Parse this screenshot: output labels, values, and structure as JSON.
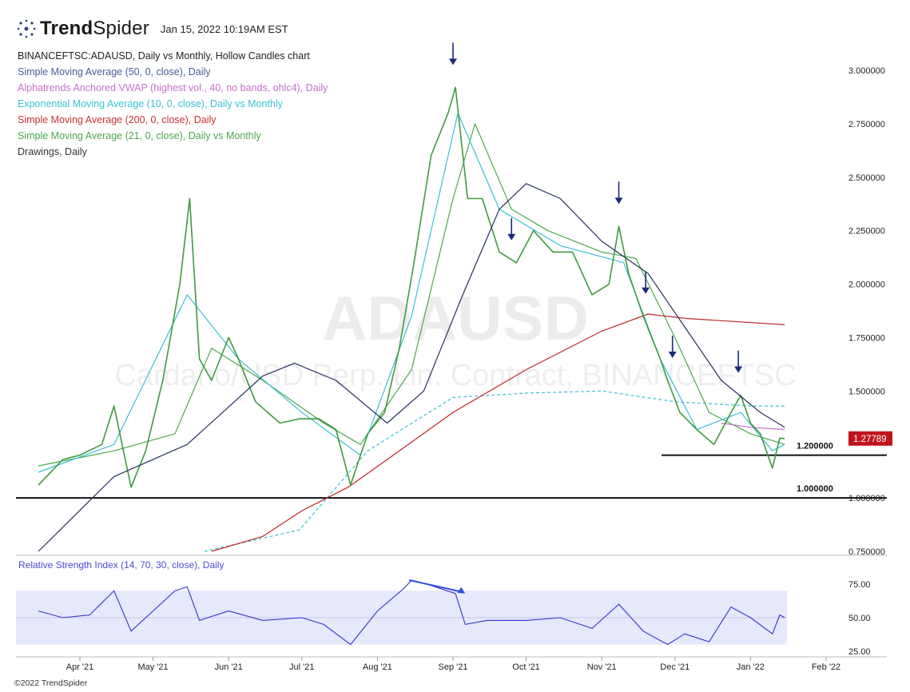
{
  "header": {
    "brand_bold": "Trend",
    "brand_light": "Spider",
    "timestamp": "Jan 15, 2022 10:19AM EST"
  },
  "legend": {
    "symbol_line": "BINANCEFTSC:ADAUSD, Daily vs Monthly, Hollow Candles chart",
    "indicators": [
      {
        "label": "Simple Moving Average (50, 0, close), Daily",
        "color": "#4a5a9c"
      },
      {
        "label": "Alphatrends Anchored VWAP (highest vol., 40, no bands, ohlc4), Daily",
        "color": "#c86fd0"
      },
      {
        "label": "Exponential Moving Average (10, 0, close), Daily vs Monthly",
        "color": "#3bbfd8"
      },
      {
        "label": "Simple Moving Average (200, 0, close), Daily",
        "color": "#c83232"
      },
      {
        "label": "Simple Moving Average (21, 0, close), Daily vs Monthly",
        "color": "#4aa84a"
      },
      {
        "label": "Drawings, Daily",
        "color": "#333333"
      }
    ]
  },
  "watermark": {
    "symbol": "ADAUSD",
    "description": "Cardano/USD Perp. Lin. Contract, BINANCEFTSC"
  },
  "chart_data": {
    "type": "line",
    "title": "BINANCEFTSC:ADAUSD, Daily vs Monthly, Hollow Candles chart",
    "x_tick_labels": [
      "Apr '21",
      "May '21",
      "Jun '21",
      "Jul '21",
      "Aug '21",
      "Sep '21",
      "Oct '21",
      "Nov '21",
      "Dec '21",
      "Jan '22",
      "Feb '22"
    ],
    "price_axis": {
      "ticks": [
        "3.000000",
        "2.750000",
        "2.500000",
        "2.250000",
        "2.000000",
        "1.750000",
        "1.500000",
        "1.000000",
        "0.750000"
      ],
      "ylim": [
        0.75,
        3.1
      ],
      "last_price_label": "1.27789",
      "last_price": 1.27789,
      "last_price_color": "#c0141c"
    },
    "horizontal_levels": [
      {
        "value": 1.2,
        "label": "1.200000"
      },
      {
        "value": 1.0,
        "label": "1.000000"
      }
    ],
    "series": [
      {
        "name": "ADAUSD close",
        "color": "#3f9a3f",
        "points": [
          [
            "2021-03-15",
            1.06
          ],
          [
            "2021-03-25",
            1.18
          ],
          [
            "2021-04-01",
            1.2
          ],
          [
            "2021-04-10",
            1.25
          ],
          [
            "2021-04-15",
            1.43
          ],
          [
            "2021-04-22",
            1.05
          ],
          [
            "2021-04-28",
            1.22
          ],
          [
            "2021-05-05",
            1.55
          ],
          [
            "2021-05-12",
            2.0
          ],
          [
            "2021-05-16",
            2.4
          ],
          [
            "2021-05-20",
            1.65
          ],
          [
            "2021-05-25",
            1.55
          ],
          [
            "2021-06-01",
            1.75
          ],
          [
            "2021-06-05",
            1.65
          ],
          [
            "2021-06-12",
            1.45
          ],
          [
            "2021-06-22",
            1.35
          ],
          [
            "2021-06-30",
            1.37
          ],
          [
            "2021-07-08",
            1.37
          ],
          [
            "2021-07-15",
            1.32
          ],
          [
            "2021-07-21",
            1.06
          ],
          [
            "2021-07-28",
            1.3
          ],
          [
            "2021-08-04",
            1.4
          ],
          [
            "2021-08-10",
            1.7
          ],
          [
            "2021-08-16",
            2.1
          ],
          [
            "2021-08-23",
            2.6
          ],
          [
            "2021-08-30",
            2.8
          ],
          [
            "2021-09-02",
            2.92
          ],
          [
            "2021-09-07",
            2.4
          ],
          [
            "2021-09-13",
            2.4
          ],
          [
            "2021-09-20",
            2.15
          ],
          [
            "2021-09-27",
            2.1
          ],
          [
            "2021-10-04",
            2.25
          ],
          [
            "2021-10-12",
            2.15
          ],
          [
            "2021-10-20",
            2.15
          ],
          [
            "2021-10-28",
            1.95
          ],
          [
            "2021-11-04",
            2.0
          ],
          [
            "2021-11-08",
            2.27
          ],
          [
            "2021-11-12",
            2.05
          ],
          [
            "2021-11-18",
            1.85
          ],
          [
            "2021-11-25",
            1.65
          ],
          [
            "2021-11-28",
            1.55
          ],
          [
            "2021-12-03",
            1.4
          ],
          [
            "2021-12-10",
            1.32
          ],
          [
            "2021-12-17",
            1.25
          ],
          [
            "2021-12-24",
            1.4
          ],
          [
            "2021-12-28",
            1.48
          ],
          [
            "2022-01-01",
            1.35
          ],
          [
            "2022-01-05",
            1.3
          ],
          [
            "2022-01-10",
            1.14
          ],
          [
            "2022-01-13",
            1.28
          ],
          [
            "2022-01-15",
            1.2779
          ]
        ]
      },
      {
        "name": "SMA 50",
        "color": "#24305e",
        "points": [
          [
            "2021-03-15",
            0.75
          ],
          [
            "2021-04-15",
            1.1
          ],
          [
            "2021-05-15",
            1.25
          ],
          [
            "2021-06-15",
            1.57
          ],
          [
            "2021-06-28",
            1.63
          ],
          [
            "2021-07-15",
            1.55
          ],
          [
            "2021-08-05",
            1.35
          ],
          [
            "2021-08-20",
            1.5
          ],
          [
            "2021-09-05",
            1.95
          ],
          [
            "2021-09-20",
            2.35
          ],
          [
            "2021-10-01",
            2.47
          ],
          [
            "2021-10-15",
            2.4
          ],
          [
            "2021-11-01",
            2.2
          ],
          [
            "2021-11-20",
            2.05
          ],
          [
            "2021-12-05",
            1.8
          ],
          [
            "2021-12-20",
            1.55
          ],
          [
            "2022-01-05",
            1.4
          ],
          [
            "2022-01-15",
            1.33
          ]
        ]
      },
      {
        "name": "SMA 200",
        "color": "#c0282a",
        "points": [
          [
            "2021-05-25",
            0.75
          ],
          [
            "2021-06-15",
            0.82
          ],
          [
            "2021-07-01",
            0.94
          ],
          [
            "2021-07-20",
            1.05
          ],
          [
            "2021-08-10",
            1.22
          ],
          [
            "2021-09-01",
            1.4
          ],
          [
            "2021-10-01",
            1.6
          ],
          [
            "2021-11-01",
            1.78
          ],
          [
            "2021-11-20",
            1.86
          ],
          [
            "2021-12-05",
            1.84
          ],
          [
            "2022-01-15",
            1.81
          ]
        ]
      },
      {
        "name": "SMA 21",
        "color": "#4aa84a",
        "points": [
          [
            "2021-03-15",
            1.15
          ],
          [
            "2021-04-15",
            1.22
          ],
          [
            "2021-05-10",
            1.3
          ],
          [
            "2021-05-25",
            1.7
          ],
          [
            "2021-06-15",
            1.55
          ],
          [
            "2021-07-10",
            1.35
          ],
          [
            "2021-07-25",
            1.25
          ],
          [
            "2021-08-15",
            1.6
          ],
          [
            "2021-09-01",
            2.4
          ],
          [
            "2021-09-10",
            2.75
          ],
          [
            "2021-09-25",
            2.35
          ],
          [
            "2021-10-10",
            2.25
          ],
          [
            "2021-11-01",
            2.15
          ],
          [
            "2021-11-15",
            2.12
          ],
          [
            "2021-12-01",
            1.75
          ],
          [
            "2021-12-15",
            1.4
          ],
          [
            "2022-01-01",
            1.3
          ],
          [
            "2022-01-15",
            1.25
          ]
        ]
      },
      {
        "name": "EMA 10",
        "color": "#3bbfd8",
        "points": [
          [
            "2021-03-15",
            1.12
          ],
          [
            "2021-04-15",
            1.25
          ],
          [
            "2021-05-15",
            1.95
          ],
          [
            "2021-06-05",
            1.65
          ],
          [
            "2021-07-01",
            1.4
          ],
          [
            "2021-07-25",
            1.2
          ],
          [
            "2021-08-15",
            1.85
          ],
          [
            "2021-09-03",
            2.8
          ],
          [
            "2021-09-20",
            2.35
          ],
          [
            "2021-10-15",
            2.18
          ],
          [
            "2021-11-10",
            2.1
          ],
          [
            "2021-11-25",
            1.65
          ],
          [
            "2021-12-10",
            1.32
          ],
          [
            "2021-12-28",
            1.4
          ],
          [
            "2022-01-10",
            1.22
          ],
          [
            "2022-01-15",
            1.25
          ]
        ]
      },
      {
        "name": "EMA 10 monthly",
        "color": "#3bbfd8",
        "dashed": true,
        "points": [
          [
            "2021-05-22",
            0.75
          ],
          [
            "2021-06-30",
            0.85
          ],
          [
            "2021-07-28",
            1.22
          ],
          [
            "2021-09-01",
            1.47
          ],
          [
            "2021-10-01",
            1.49
          ],
          [
            "2021-11-01",
            1.5
          ],
          [
            "2021-12-01",
            1.45
          ],
          [
            "2022-01-01",
            1.43
          ],
          [
            "2022-01-15",
            1.43
          ]
        ]
      },
      {
        "name": "Anchored VWAP",
        "color": "#c86fd0",
        "points": [
          [
            "2021-12-20",
            1.35
          ],
          [
            "2022-01-01",
            1.33
          ],
          [
            "2022-01-15",
            1.32
          ]
        ]
      }
    ],
    "markers_down_arrows": [
      "2021-09-01",
      "2021-09-25",
      "2021-11-08",
      "2021-11-19",
      "2021-11-30",
      "2021-12-27"
    ],
    "rsi": {
      "label": "Relative Strength Index (14, 70, 30, close), Daily",
      "ticks": [
        "75.00",
        "50.00",
        "25.00"
      ],
      "ylim": [
        25,
        80
      ],
      "overbought": 70,
      "oversold": 30,
      "points": [
        [
          "2021-03-15",
          55
        ],
        [
          "2021-03-25",
          50
        ],
        [
          "2021-04-05",
          52
        ],
        [
          "2021-04-15",
          70
        ],
        [
          "2021-04-22",
          40
        ],
        [
          "2021-05-01",
          55
        ],
        [
          "2021-05-10",
          70
        ],
        [
          "2021-05-15",
          73
        ],
        [
          "2021-05-20",
          48
        ],
        [
          "2021-06-01",
          55
        ],
        [
          "2021-06-15",
          48
        ],
        [
          "2021-07-01",
          50
        ],
        [
          "2021-07-10",
          45
        ],
        [
          "2021-07-21",
          30
        ],
        [
          "2021-08-01",
          55
        ],
        [
          "2021-08-12",
          72
        ],
        [
          "2021-08-15",
          78
        ],
        [
          "2021-08-23",
          74
        ],
        [
          "2021-09-02",
          68
        ],
        [
          "2021-09-06",
          45
        ],
        [
          "2021-09-15",
          48
        ],
        [
          "2021-10-01",
          48
        ],
        [
          "2021-10-15",
          50
        ],
        [
          "2021-10-28",
          42
        ],
        [
          "2021-11-08",
          60
        ],
        [
          "2021-11-18",
          40
        ],
        [
          "2021-11-28",
          30
        ],
        [
          "2021-12-05",
          38
        ],
        [
          "2021-12-15",
          32
        ],
        [
          "2021-12-24",
          58
        ],
        [
          "2022-01-01",
          50
        ],
        [
          "2022-01-10",
          38
        ],
        [
          "2022-01-13",
          52
        ],
        [
          "2022-01-15",
          50
        ]
      ],
      "divergence_line": {
        "from": [
          "2021-08-14",
          78
        ],
        "to": [
          "2021-09-06",
          68
        ]
      }
    },
    "grid": false
  },
  "footer": {
    "copyright": "©2022 TrendSpider"
  }
}
